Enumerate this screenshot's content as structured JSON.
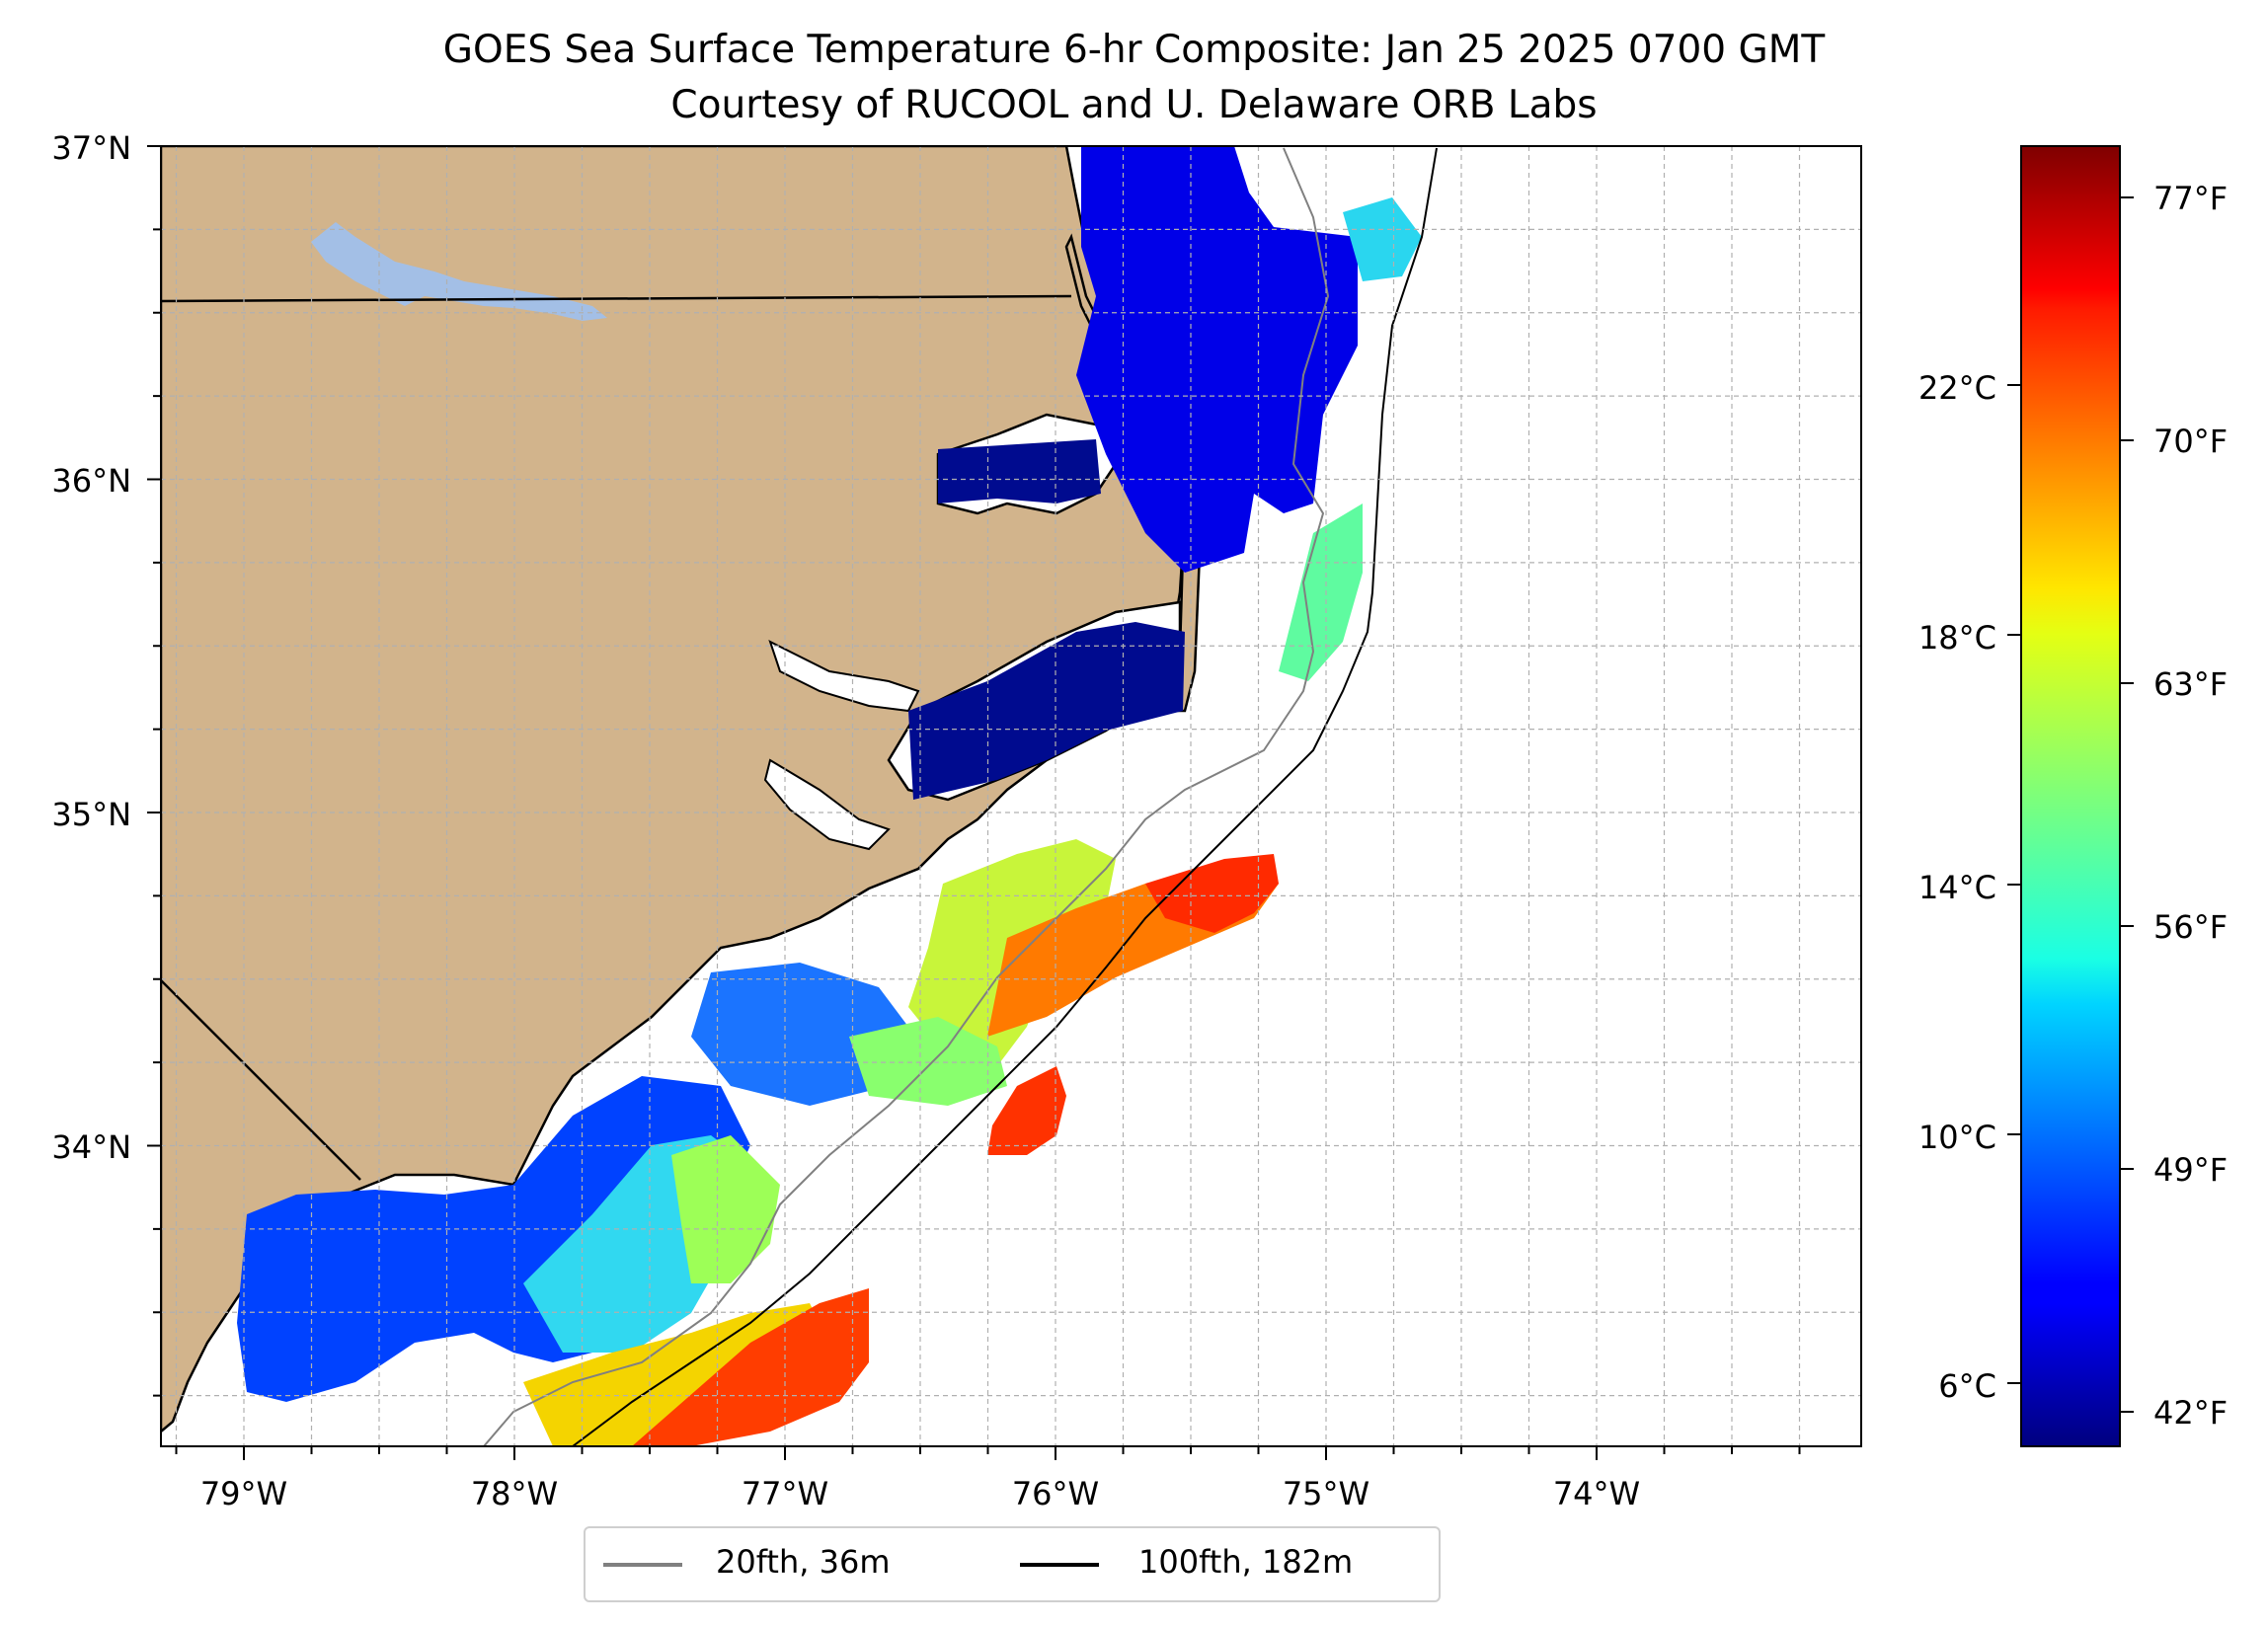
{
  "title": "GOES Sea Surface Temperature 6-hr Composite: Jan 25 2025 0700 GMT",
  "subtitle": "Courtesy of RUCOOL and U. Delaware ORB Labs",
  "map": {
    "lat_ticks": [
      "37°N",
      "36°N",
      "35°N",
      "34°N"
    ],
    "lon_ticks": [
      "79°W",
      "78°W",
      "77°W",
      "76°W",
      "75°W",
      "74°W"
    ],
    "extent": {
      "lon": [
        -79.3,
        -73.0
      ],
      "lat": [
        33.1,
        37.0
      ]
    },
    "gridlines": true,
    "land_color": "#d2b48c",
    "inland_water_color": "#a3bfe6"
  },
  "colorbar": {
    "cmap": "jet",
    "range_c": [
      4.8,
      26.2
    ],
    "celsius_ticks": [
      "22°C",
      "18°C",
      "14°C",
      "10°C",
      "6°C"
    ],
    "fahrenheit_ticks": [
      "77°F",
      "70°F",
      "63°F",
      "56°F",
      "49°F",
      "42°F"
    ]
  },
  "legend": {
    "items": [
      {
        "label": "20fth, 36m",
        "color": "#808080"
      },
      {
        "label": "100fth, 182m",
        "color": "#000000"
      }
    ]
  }
}
